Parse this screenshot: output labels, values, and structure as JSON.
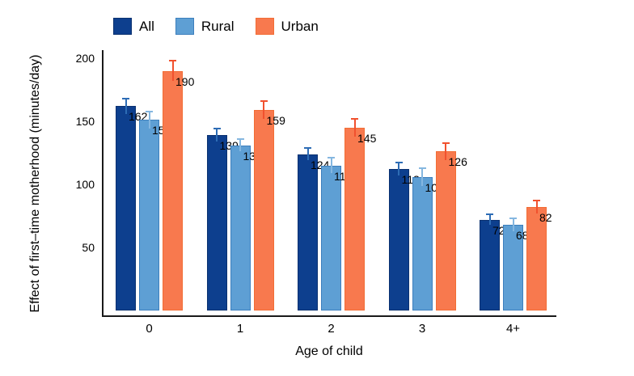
{
  "chart_data": {
    "type": "bar",
    "title": "",
    "categories": [
      "0",
      "1",
      "2",
      "3",
      "4+"
    ],
    "series": [
      {
        "name": "All",
        "color": "#0d3f8e",
        "border_color": "#0a3170",
        "error_color": "#2d6cb5",
        "values": [
          162,
          139,
          124,
          112,
          72
        ],
        "errors": [
          6,
          5,
          5,
          5,
          4
        ]
      },
      {
        "name": "Rural",
        "color": "#5e9fd4",
        "border_color": "#3d7fbd",
        "error_color": "#85b7e0",
        "values": [
          151,
          131,
          115,
          106,
          68
        ],
        "errors": [
          7,
          5,
          6,
          7,
          5
        ]
      },
      {
        "name": "Urban",
        "color": "#f8794e",
        "border_color": "#f26d35",
        "error_color": "#f1512e",
        "values": [
          190,
          159,
          145,
          126,
          82
        ],
        "errors": [
          8,
          7,
          7,
          7,
          5
        ]
      }
    ],
    "xlabel": "Age of child",
    "ylabel": "Effect of first–time motherhood (minutes/day)",
    "y_ticks": [
      50,
      100,
      150,
      200
    ],
    "ylim": [
      0,
      210
    ],
    "grid": false,
    "legend_position": "top-left",
    "error_bars": true,
    "bar_value_labels": true
  },
  "colors": {
    "background": "#ffffff",
    "axis": "#1a1a1a",
    "text": "#000000"
  }
}
